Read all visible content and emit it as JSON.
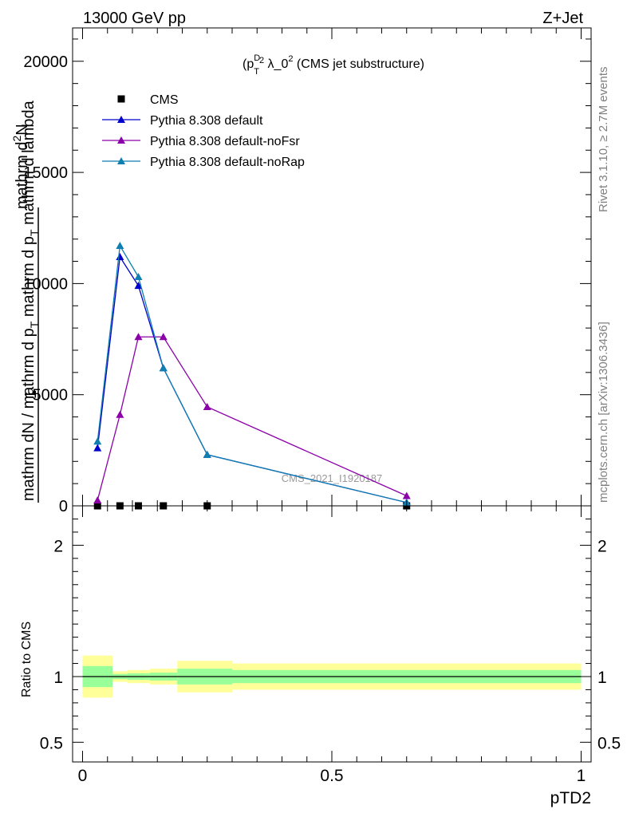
{
  "header": {
    "energy_label": "13000 GeV pp",
    "process_label": "Z+Jet"
  },
  "chart_data": [
    {
      "type": "line",
      "title": "(p_T^D)^2 λ_0^2 (CMS jet substructure)",
      "ylabel": "1 / mathrm dN / mathrm d p_T mathrm d p_T mathrm d^2N / mathrm d lambda",
      "xlabel": "",
      "xlim": [
        -0.02,
        1.02
      ],
      "ylim": [
        0,
        21500
      ],
      "x_ticks": [
        0,
        0.5,
        1
      ],
      "y_ticks": [
        0,
        5000,
        10000,
        15000,
        20000
      ],
      "y_tick_labels": [
        "0",
        "5000",
        "10000",
        "15000",
        "20000"
      ],
      "legend_position": "top-left",
      "watermark": "CMS_2021_I1920187",
      "series": [
        {
          "name": "CMS",
          "color": "#000000",
          "marker": "square",
          "line": false,
          "x": [
            0.03,
            0.075,
            0.112,
            0.162,
            0.25,
            0.65
          ],
          "y": [
            0,
            0,
            0,
            0,
            0,
            0
          ]
        },
        {
          "name": "Pythia 8.308 default",
          "color": "#0000cc",
          "marker": "triangle",
          "line": true,
          "x": [
            0.03,
            0.075,
            0.112,
            0.162,
            0.25,
            0.65
          ],
          "y": [
            2600,
            11200,
            9900,
            6200,
            2300,
            150
          ]
        },
        {
          "name": "Pythia 8.308 default-noFsr",
          "color": "#8b00a8",
          "marker": "triangle",
          "line": true,
          "x": [
            0.03,
            0.075,
            0.112,
            0.162,
            0.25,
            0.65
          ],
          "y": [
            250,
            4100,
            7600,
            7600,
            4450,
            450
          ]
        },
        {
          "name": "Pythia 8.308 default-noRap",
          "color": "#0e7fb0",
          "marker": "triangle",
          "line": true,
          "x": [
            0.03,
            0.075,
            0.112,
            0.162,
            0.25,
            0.65
          ],
          "y": [
            2900,
            11700,
            10300,
            6200,
            2300,
            150
          ]
        }
      ]
    },
    {
      "type": "area",
      "ylabel": "Ratio to CMS",
      "xlabel": "pTD2",
      "xlim": [
        -0.02,
        1.02
      ],
      "ylim": [
        0.35,
        2.3
      ],
      "x_ticks": [
        0,
        0.5,
        1
      ],
      "x_tick_labels": [
        "0",
        "0.5",
        "1"
      ],
      "y_ticks": [
        0.5,
        1,
        2
      ],
      "y_tick_labels": [
        "0.5",
        "1",
        "2"
      ],
      "reference_line": 1,
      "bands": {
        "bin_edges": [
          0,
          0.06,
          0.09,
          0.135,
          0.19,
          0.3,
          1.0
        ],
        "total_uncertainty": {
          "color": "#ffff99",
          "low": [
            0.84,
            0.96,
            0.95,
            0.94,
            0.88,
            0.9
          ],
          "high": [
            1.16,
            1.04,
            1.05,
            1.06,
            1.12,
            1.1
          ]
        },
        "stat_uncertainty": {
          "color": "#99ff99",
          "low": [
            0.92,
            0.98,
            0.975,
            0.97,
            0.94,
            0.95
          ],
          "high": [
            1.08,
            1.02,
            1.025,
            1.03,
            1.06,
            1.05
          ]
        }
      }
    }
  ],
  "side_text": {
    "rivet": "Rivet 3.1.10, ≥ 2.7M events",
    "mcplots": "mcplots.cern.ch [arXiv:1306.3436]"
  }
}
